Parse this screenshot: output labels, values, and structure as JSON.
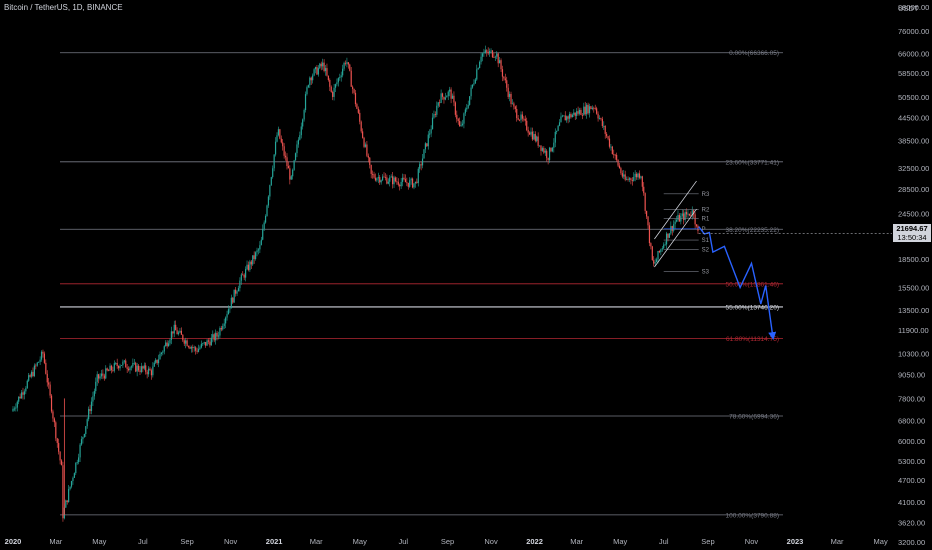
{
  "header": {
    "title": "Bitcoin / TetherUS, 1D, BINANCE"
  },
  "price_scale": {
    "currency": "USDT"
  },
  "last_price": {
    "value": "21694.67",
    "countdown": "13:50:34"
  },
  "colors": {
    "background": "#000000",
    "up_candle": "#26a69a",
    "down_candle": "#ef5350",
    "fib_gray": "#787b86",
    "fib_red": "#b22833",
    "fib_white": "#d1d4dc",
    "projection": "#2962ff"
  },
  "chart_data": {
    "type": "candlestick",
    "title": "Bitcoin / TetherUS, 1D, BINANCE",
    "ylabel": "USDT",
    "y_scale": "log",
    "ylim": [
      3050,
      92000
    ],
    "y_ticks": [
      88000,
      76000,
      66000,
      58500,
      50500,
      44500,
      38500,
      32500,
      28500,
      24500,
      21000,
      18500,
      15500,
      13500,
      11900,
      10300,
      9050,
      7800,
      6800,
      6000,
      5300,
      4700,
      4100,
      3620,
      3200
    ],
    "x_ticks": [
      "2020",
      "Mar",
      "May",
      "Jul",
      "Sep",
      "Nov",
      "2021",
      "Mar",
      "May",
      "Jul",
      "Sep",
      "Nov",
      "2022",
      "Mar",
      "May",
      "Jul",
      "Sep",
      "Nov",
      "2023",
      "Mar",
      "May"
    ],
    "price_path": [
      [
        "2020-01-01",
        7200
      ],
      [
        "2020-02-14",
        10300
      ],
      [
        "2020-03-12",
        4900
      ],
      [
        "2020-03-13",
        3790.88
      ],
      [
        "2020-04-30",
        8800
      ],
      [
        "2020-06-01",
        9700
      ],
      [
        "2020-07-15",
        9200
      ],
      [
        "2020-08-15",
        12000
      ],
      [
        "2020-09-15",
        10500
      ],
      [
        "2020-10-15",
        11500
      ],
      [
        "2020-11-15",
        16000
      ],
      [
        "2020-12-15",
        20000
      ],
      [
        "2021-01-08",
        41000
      ],
      [
        "2021-01-27",
        30000
      ],
      [
        "2021-02-21",
        57000
      ],
      [
        "2021-03-13",
        61700
      ],
      [
        "2021-03-25",
        51000
      ],
      [
        "2021-04-14",
        64000
      ],
      [
        "2021-05-19",
        31000
      ],
      [
        "2021-06-22",
        30000
      ],
      [
        "2021-07-20",
        29500
      ],
      [
        "2021-08-22",
        50000
      ],
      [
        "2021-09-07",
        52000
      ],
      [
        "2021-09-21",
        41000
      ],
      [
        "2021-10-20",
        66000
      ],
      [
        "2021-11-10",
        66366.05
      ],
      [
        "2021-12-04",
        47000
      ],
      [
        "2022-01-22",
        35000
      ],
      [
        "2022-02-10",
        44000
      ],
      [
        "2022-03-28",
        47800
      ],
      [
        "2022-05-09",
        30000
      ],
      [
        "2022-06-01",
        31500
      ],
      [
        "2022-06-18",
        17600
      ],
      [
        "2022-07-08",
        21500
      ],
      [
        "2022-07-20",
        23500
      ],
      [
        "2022-08-14",
        24900
      ],
      [
        "2022-08-19",
        21694.67
      ]
    ],
    "fibonacci_levels": [
      {
        "label": "0.00%(66366.05)",
        "price": 66366.05,
        "color": "#787b86"
      },
      {
        "label": "23.60%(33771.41)",
        "price": 33771.41,
        "color": "#787b86"
      },
      {
        "label": "38.20%(22235.22)",
        "price": 22235.22,
        "color": "#787b86"
      },
      {
        "label": "50.00%(15861.46)",
        "price": 15861.46,
        "color": "#b22833"
      },
      {
        "label": "55.00%(13746.20)",
        "price": 13746.2,
        "color": "#d1d4dc"
      },
      {
        "label": "61.80%(11314.75)",
        "price": 11314.75,
        "color": "#b22833"
      },
      {
        "label": "78.60%(6994.36)",
        "price": 6994.36,
        "color": "#787b86"
      },
      {
        "label": "100.00%(3790.88)",
        "price": 3790.88,
        "color": "#787b86"
      }
    ],
    "pivot_labels": [
      "R3",
      "R2",
      "R1",
      "P",
      "S1",
      "S2",
      "S3"
    ],
    "pivot_levels": [
      {
        "label": "R3",
        "price": 27700
      },
      {
        "label": "R2",
        "price": 25100
      },
      {
        "label": "R1",
        "price": 23800
      },
      {
        "label": "P",
        "price": 22300
      },
      {
        "label": "S1",
        "price": 20800
      },
      {
        "label": "S2",
        "price": 19600
      },
      {
        "label": "S3",
        "price": 17100
      }
    ],
    "projection_path": [
      [
        "2022-08-19",
        22600
      ],
      [
        "2022-08-27",
        21600
      ],
      [
        "2022-09-03",
        21800
      ],
      [
        "2022-09-08",
        19300
      ],
      [
        "2022-09-24",
        20000
      ],
      [
        "2022-10-16",
        15500
      ],
      [
        "2022-11-01",
        18000
      ],
      [
        "2022-11-14",
        14000
      ],
      [
        "2022-11-21",
        15700
      ],
      [
        "2022-12-01",
        11400
      ]
    ],
    "channel": {
      "from": [
        "2022-06-18",
        17600
      ],
      "to": [
        "2022-08-16",
        25200
      ]
    }
  }
}
